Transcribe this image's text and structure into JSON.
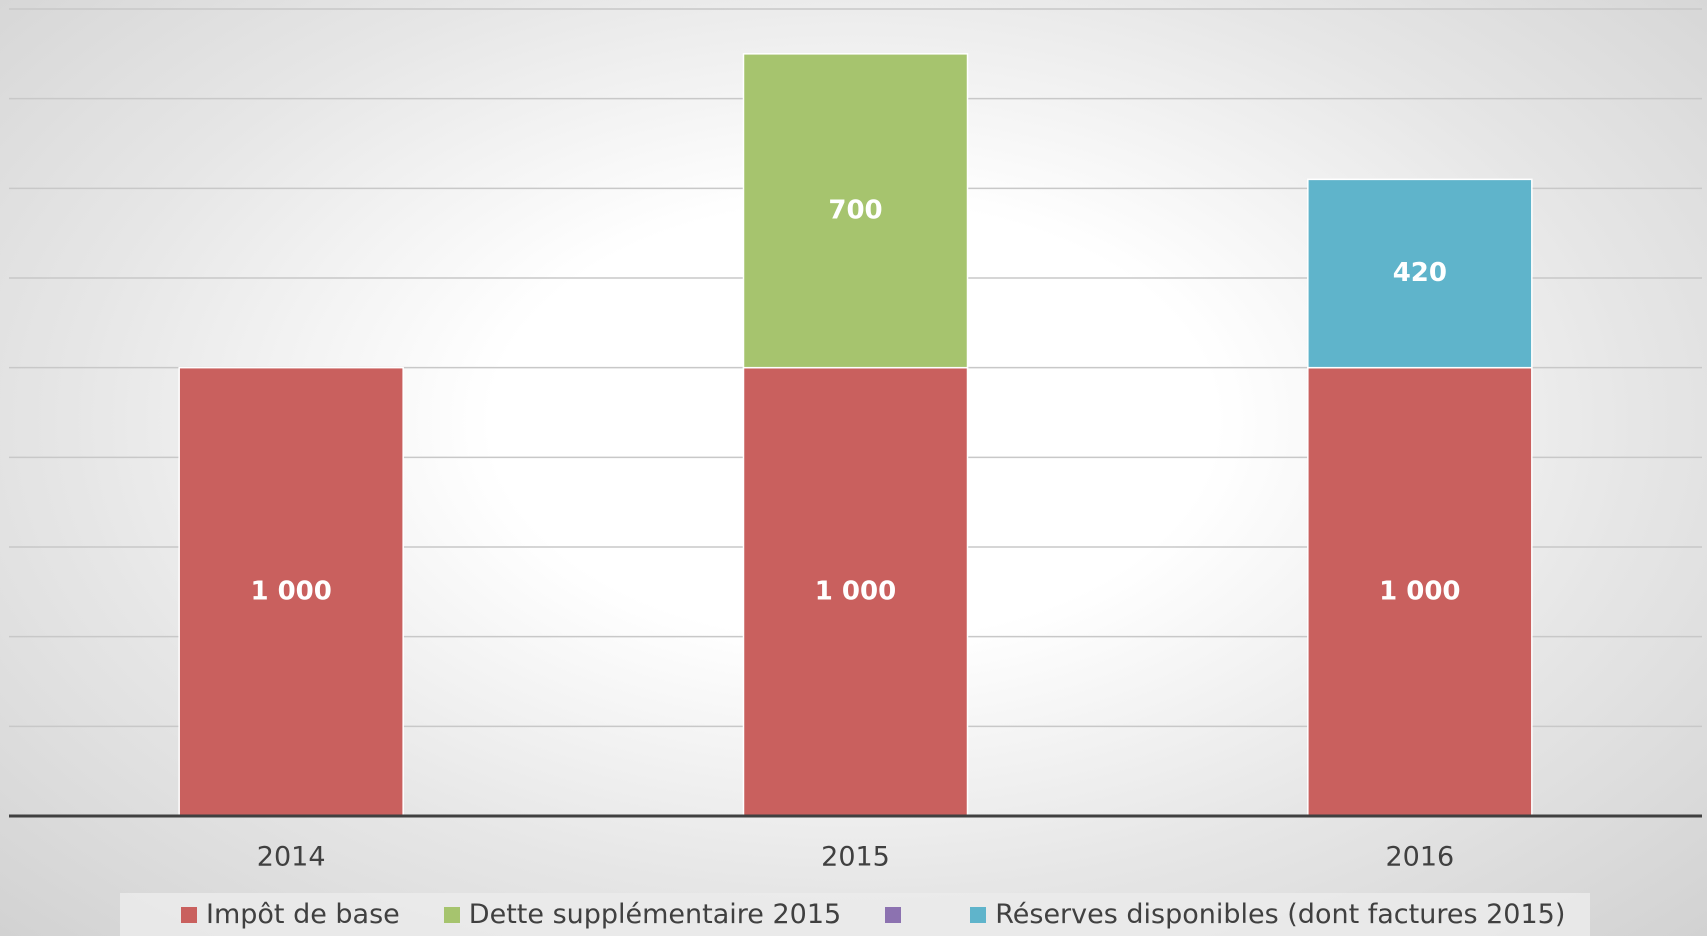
{
  "chart_data": {
    "type": "stacked_bar",
    "categories": [
      "2014",
      "2015",
      "2016"
    ],
    "series": [
      {
        "name": "Impôt de base",
        "color": "#c9605e",
        "values": [
          1000,
          1000,
          1000
        ],
        "value_labels": [
          "1 000",
          "1 000",
          "1 000"
        ]
      },
      {
        "name": "Dette supplémentaire 2015",
        "color": "#a6c46e",
        "values": [
          null,
          700,
          null
        ],
        "value_labels": [
          null,
          "700",
          null
        ]
      },
      {
        "color": "#8c72b0",
        "values": [
          null,
          null,
          null
        ]
      },
      {
        "name": "Réserves disponibles (dont factures 2015)",
        "color": "#5fb4cb",
        "values": [
          null,
          null,
          420
        ],
        "value_labels": [
          null,
          null,
          "420"
        ]
      }
    ],
    "ylim": [
      0,
      1800
    ],
    "yticks": [
      0,
      200,
      400,
      600,
      800,
      1000,
      1200,
      1400,
      1600,
      1800
    ],
    "grid": true
  }
}
